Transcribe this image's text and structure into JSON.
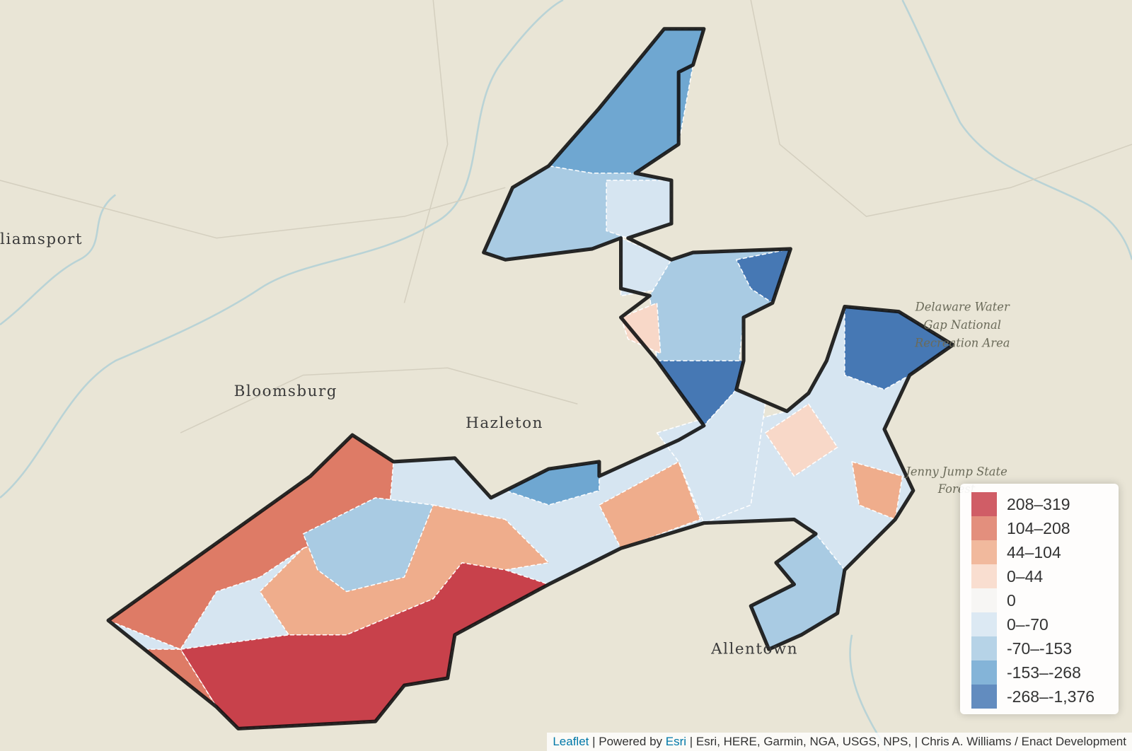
{
  "places": {
    "williamsport": "liamsport",
    "bloomsburg": "Bloomsburg",
    "hazleton": "Hazleton",
    "allentown": "Allentown",
    "delaware_water_gap": [
      "Delaware Water",
      "Gap National",
      "Recreation Area"
    ],
    "jenny_jump": [
      "Jenny Jump State",
      "Forest"
    ]
  },
  "legend": {
    "items": [
      {
        "label": "208–319",
        "color": "#c8414b"
      },
      {
        "label": "104–208",
        "color": "#de7b66"
      },
      {
        "label": "44–104",
        "color": "#efad8c"
      },
      {
        "label": "0–44",
        "color": "#f8d8c8"
      },
      {
        "label": "0",
        "color": "#f6f4f2"
      },
      {
        "label": "0–-70",
        "color": "#d6e5f1"
      },
      {
        "label": "-70–-153",
        "color": "#a9cbe3"
      },
      {
        "label": "-153–-268",
        "color": "#6fa7d1"
      },
      {
        "label": "-268–-1,376",
        "color": "#4678b4"
      }
    ]
  },
  "attribution": {
    "leaflet": "Leaflet",
    "powered_by": "| Powered by",
    "esri": "Esri",
    "sources": "| Esri, HERE, Garmin, NGA, USGS, NPS, | Chris A. Williams / Enact Development"
  }
}
